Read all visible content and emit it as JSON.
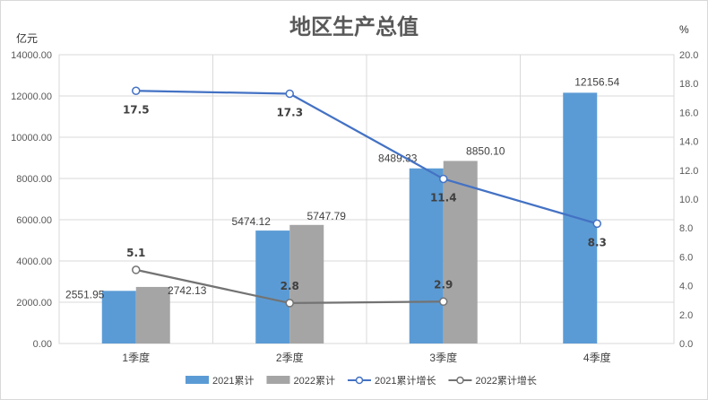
{
  "chart_data": {
    "type": "bar",
    "title": "地区生产总值",
    "y_left_label": "亿元",
    "y_right_label": "%",
    "categories": [
      "1季度",
      "2季度",
      "3季度",
      "4季度"
    ],
    "y_left_range": [
      0,
      14000
    ],
    "y_left_ticks": [
      "0.00",
      "2000.00",
      "4000.00",
      "6000.00",
      "8000.00",
      "10000.00",
      "12000.00",
      "14000.00"
    ],
    "y_right_range": [
      0,
      20
    ],
    "y_right_ticks": [
      "0.0",
      "2.0",
      "4.0",
      "6.0",
      "8.0",
      "10.0",
      "12.0",
      "14.0",
      "16.0",
      "18.0",
      "20.0"
    ],
    "grid": true,
    "legend_position": "bottom",
    "series": [
      {
        "name": "2021累计",
        "kind": "bar",
        "axis": "left",
        "color": "#5b9bd5",
        "values": [
          2551.95,
          5474.12,
          8489.33,
          12156.54
        ],
        "labels": [
          "2551.95",
          "5474.12",
          "8489.33",
          "12156.54"
        ]
      },
      {
        "name": "2022累计",
        "kind": "bar",
        "axis": "left",
        "color": "#a5a5a5",
        "values": [
          2742.13,
          5747.79,
          8850.1,
          null
        ],
        "labels": [
          "2742.13",
          "5747.79",
          "8850.10",
          ""
        ]
      },
      {
        "name": "2021累计增长",
        "kind": "line",
        "axis": "right",
        "color": "#4472c4",
        "values": [
          17.5,
          17.3,
          11.4,
          8.3
        ],
        "labels": [
          "17.5",
          "17.3",
          "11.4",
          "8.3"
        ]
      },
      {
        "name": "2022累计增长",
        "kind": "line",
        "axis": "right",
        "color": "#737373",
        "values": [
          5.1,
          2.8,
          2.9,
          null
        ],
        "labels": [
          "5.1",
          "2.8",
          "2.9",
          ""
        ]
      }
    ]
  }
}
